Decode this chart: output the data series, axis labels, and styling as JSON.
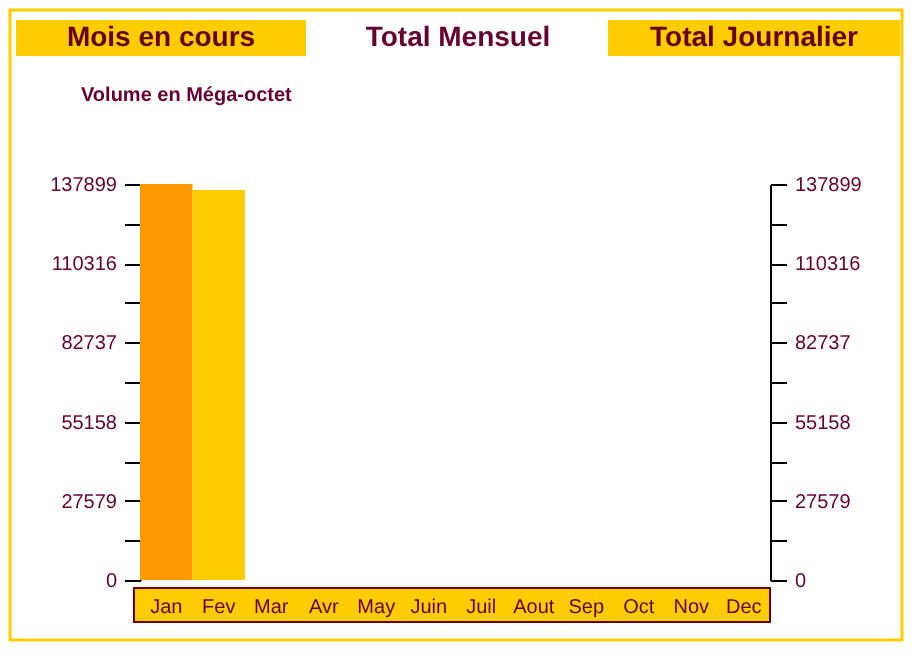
{
  "chart_data": {
    "type": "bar",
    "title": "Total Mensuel",
    "annotations": [
      "Mois en cours",
      "Total Journalier"
    ],
    "ylabel": "Volume en Méga-octet",
    "categories": [
      "Jan",
      "Fev",
      "Mar",
      "Avr",
      "May",
      "Juin",
      "Juil",
      "Aout",
      "Sep",
      "Oct",
      "Nov",
      "Dec"
    ],
    "values": [
      137899,
      135800,
      0,
      0,
      0,
      0,
      0,
      0,
      0,
      0,
      0,
      0
    ],
    "colors": [
      "#ff9900",
      "#ffcc00",
      "#ff9900",
      "#ffcc00",
      "#ff9900",
      "#ffcc00",
      "#ff9900",
      "#ffcc00",
      "#ff9900",
      "#ffcc00",
      "#ff9900",
      "#ffcc00"
    ],
    "ylim": [
      0,
      137899
    ],
    "yticks": [
      0,
      {
        "value": 13789.5,
        "label": null
      },
      27579,
      {
        "value": 41368.5,
        "label": null
      },
      55158,
      {
        "value": 68947.5,
        "label": null
      },
      82737,
      {
        "value": 96526.5,
        "label": null
      },
      110316,
      {
        "value": 124107.5,
        "label": null
      },
      137899
    ],
    "y2lim": [
      0,
      137899
    ],
    "y2ticks": [
      0,
      {
        "value": 13789.5,
        "label": null
      },
      27579,
      {
        "value": 41368.5,
        "label": null
      },
      55158,
      {
        "value": 68947.5,
        "label": null
      },
      82737,
      {
        "value": 96526.5,
        "label": null
      },
      110316,
      {
        "value": 124107.5,
        "label": null
      },
      137899
    ],
    "grid": false
  }
}
